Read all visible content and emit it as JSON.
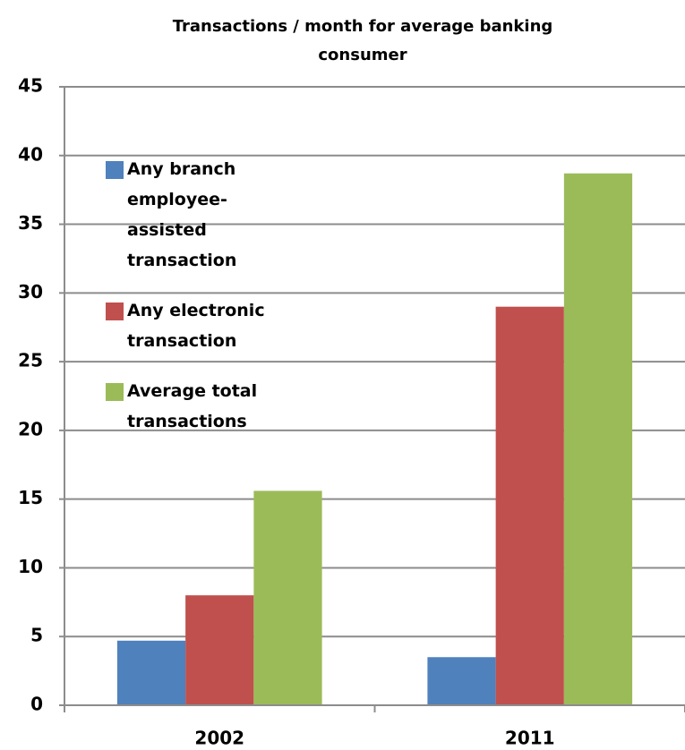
{
  "chart_data": {
    "type": "bar",
    "title": "Transactions / month for average banking consumer",
    "categories": [
      "2002",
      "2011"
    ],
    "series": [
      {
        "name": "Any branch employee-assisted transaction",
        "color": "#4f81bd",
        "values": [
          4.7,
          3.5
        ]
      },
      {
        "name": "Any electronic transaction",
        "color": "#c0504d",
        "values": [
          8,
          29
        ]
      },
      {
        "name": "Average total transactions",
        "color": "#9bbb59",
        "values": [
          15.6,
          38.7
        ]
      }
    ],
    "ylim": [
      0,
      45
    ],
    "yticks": [
      0,
      5,
      10,
      15,
      20,
      25,
      30,
      35,
      40,
      45
    ],
    "grid": true,
    "legend": "upper left"
  }
}
